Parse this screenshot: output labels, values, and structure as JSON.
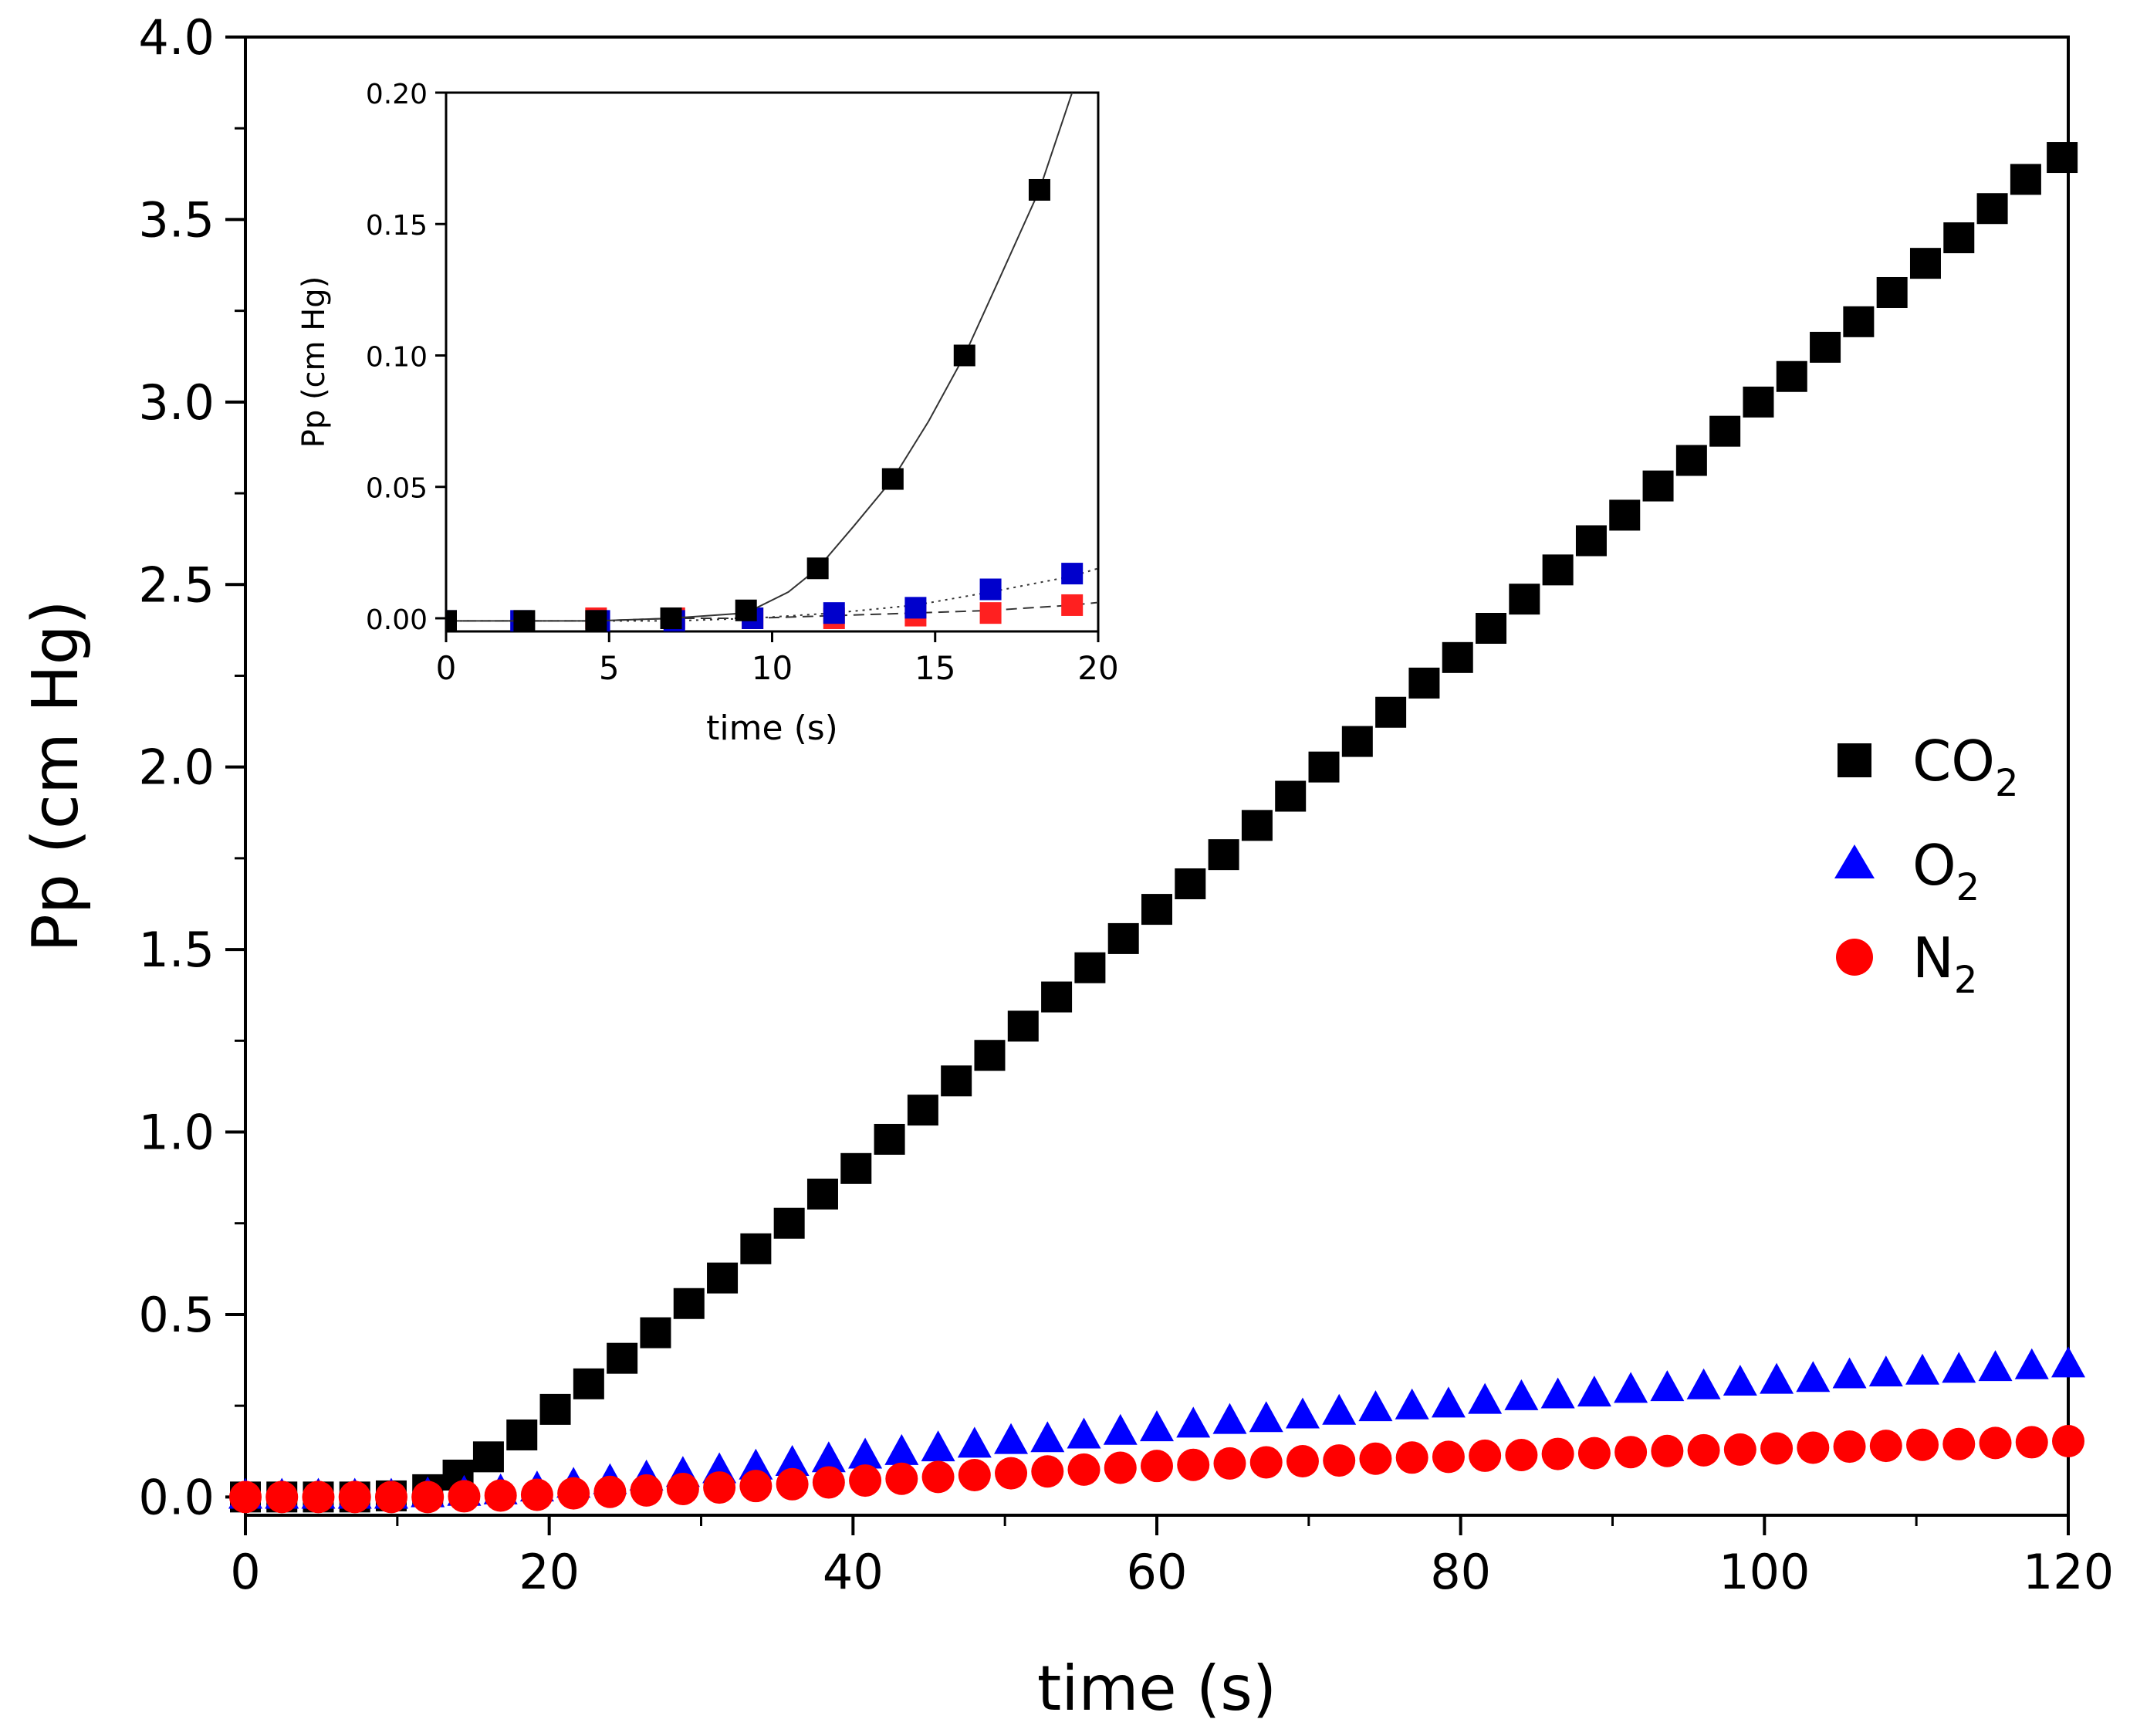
{
  "chart_data": [
    {
      "type": "scatter",
      "name": "main",
      "xlabel": "time (s)",
      "ylabel": "Pp (cm Hg)",
      "xlim": [
        0,
        120
      ],
      "ylim": [
        -0.05,
        4.0
      ],
      "xticks": [
        0,
        20,
        40,
        60,
        80,
        100,
        120
      ],
      "xtick_labels": [
        "0",
        "20",
        "40",
        "60",
        "80",
        "100",
        "120"
      ],
      "yticks": [
        0.0,
        0.5,
        1.0,
        1.5,
        2.0,
        2.5,
        3.0,
        3.5,
        4.0
      ],
      "ytick_labels": [
        "0.0",
        "0.5",
        "1.0",
        "1.5",
        "2.0",
        "2.5",
        "3.0",
        "3.5",
        "4.0"
      ],
      "series": [
        {
          "name": "CO",
          "sub": "2",
          "marker": "square",
          "color": "#000000",
          "x": [
            0,
            2.4,
            4.8,
            7.2,
            9.6,
            12.0,
            14.0,
            16.0,
            18.2,
            20.4,
            22.6,
            24.8,
            27.0,
            29.2,
            31.4,
            33.6,
            35.8,
            38.0,
            40.2,
            42.4,
            44.6,
            46.8,
            49.0,
            51.2,
            53.4,
            55.6,
            57.8,
            60.0,
            62.2,
            64.4,
            66.6,
            68.8,
            71.0,
            73.2,
            75.4,
            77.6,
            79.8,
            82.0,
            84.2,
            86.4,
            88.6,
            90.8,
            93.0,
            95.2,
            97.4,
            99.6,
            101.8,
            104.0,
            106.2,
            108.4,
            110.6,
            112.8,
            115.0,
            117.2,
            119.6
          ],
          "y": [
            0.0,
            0.0,
            0.0,
            0.0,
            0.003,
            0.02,
            0.06,
            0.11,
            0.17,
            0.24,
            0.31,
            0.38,
            0.45,
            0.53,
            0.6,
            0.68,
            0.75,
            0.83,
            0.9,
            0.98,
            1.06,
            1.14,
            1.21,
            1.29,
            1.37,
            1.45,
            1.53,
            1.61,
            1.68,
            1.76,
            1.84,
            1.92,
            2.0,
            2.07,
            2.15,
            2.23,
            2.3,
            2.38,
            2.46,
            2.54,
            2.62,
            2.69,
            2.77,
            2.84,
            2.92,
            3.0,
            3.07,
            3.15,
            3.22,
            3.3,
            3.38,
            3.45,
            3.53,
            3.61,
            3.67
          ]
        },
        {
          "name": "O",
          "sub": "2",
          "marker": "triangle",
          "color": "#0000ff",
          "x": [
            0,
            2.4,
            4.8,
            7.2,
            9.6,
            12.0,
            14.4,
            16.8,
            19.2,
            21.6,
            24.0,
            26.4,
            28.8,
            31.2,
            33.6,
            36.0,
            38.4,
            40.8,
            43.2,
            45.6,
            48.0,
            50.4,
            52.8,
            55.2,
            57.6,
            60.0,
            62.4,
            64.8,
            67.2,
            69.6,
            72.0,
            74.4,
            76.8,
            79.2,
            81.6,
            84.0,
            86.4,
            88.8,
            91.2,
            93.6,
            96.0,
            98.4,
            100.8,
            103.2,
            105.6,
            108.0,
            110.4,
            112.8,
            115.2,
            117.6,
            120.0
          ],
          "y": [
            0.0,
            0.0,
            0.0,
            0.0,
            0.0,
            0.004,
            0.008,
            0.012,
            0.02,
            0.03,
            0.04,
            0.05,
            0.06,
            0.07,
            0.08,
            0.09,
            0.1,
            0.11,
            0.12,
            0.13,
            0.14,
            0.15,
            0.155,
            0.165,
            0.175,
            0.185,
            0.195,
            0.205,
            0.21,
            0.22,
            0.23,
            0.24,
            0.245,
            0.25,
            0.26,
            0.27,
            0.275,
            0.28,
            0.29,
            0.295,
            0.3,
            0.31,
            0.315,
            0.32,
            0.33,
            0.335,
            0.34,
            0.345,
            0.35,
            0.355,
            0.36
          ]
        },
        {
          "name": "N",
          "sub": "2",
          "marker": "circle",
          "color": "#ff0000",
          "x": [
            0,
            2.4,
            4.8,
            7.2,
            9.6,
            12.0,
            14.4,
            16.8,
            19.2,
            21.6,
            24.0,
            26.4,
            28.8,
            31.2,
            33.6,
            36.0,
            38.4,
            40.8,
            43.2,
            45.6,
            48.0,
            50.4,
            52.8,
            55.2,
            57.6,
            60.0,
            62.4,
            64.8,
            67.2,
            69.6,
            72.0,
            74.4,
            76.8,
            79.2,
            81.6,
            84.0,
            86.4,
            88.8,
            91.2,
            93.6,
            96.0,
            98.4,
            100.8,
            103.2,
            105.6,
            108.0,
            110.4,
            112.8,
            115.2,
            117.6,
            120.0
          ],
          "y": [
            0.0,
            0.0,
            0.0,
            0.0,
            0.0,
            0.0,
            0.002,
            0.004,
            0.006,
            0.01,
            0.014,
            0.018,
            0.022,
            0.026,
            0.03,
            0.035,
            0.04,
            0.045,
            0.05,
            0.055,
            0.06,
            0.065,
            0.07,
            0.075,
            0.08,
            0.085,
            0.088,
            0.092,
            0.095,
            0.098,
            0.1,
            0.105,
            0.108,
            0.11,
            0.113,
            0.115,
            0.118,
            0.12,
            0.123,
            0.126,
            0.128,
            0.13,
            0.133,
            0.135,
            0.138,
            0.14,
            0.143,
            0.145,
            0.148,
            0.15,
            0.153
          ]
        }
      ],
      "legend_position": "right"
    },
    {
      "type": "line",
      "name": "inset",
      "xlabel": "time (s)",
      "ylabel": "Pp (cm Hg)",
      "xlim": [
        0,
        20
      ],
      "ylim": [
        -0.005,
        0.2
      ],
      "xticks": [
        0,
        5,
        10,
        15,
        20
      ],
      "xtick_labels": [
        "0",
        "5",
        "10",
        "15",
        "20"
      ],
      "yticks": [
        0.0,
        0.05,
        0.1,
        0.15,
        0.2
      ],
      "ytick_labels": [
        "0.00",
        "0.05",
        "0.10",
        "0.15",
        "0.20"
      ],
      "series": [
        {
          "name": "CO2",
          "marker": "square",
          "color": "#000000",
          "line_dash": "solid",
          "x": [
            0,
            2.4,
            4.6,
            6.9,
            9.2,
            11.4,
            13.7,
            15.9,
            18.2
          ],
          "y": [
            -0.001,
            -0.001,
            -0.001,
            0.0,
            0.003,
            0.019,
            0.053,
            0.1,
            0.163
          ],
          "curve_x": [
            0,
            2.4,
            4.6,
            6.9,
            9.2,
            10.5,
            11.4,
            12.5,
            13.7,
            14.8,
            15.9,
            17.0,
            18.2,
            19.2
          ],
          "curve_y": [
            -0.001,
            -0.001,
            -0.001,
            0.0,
            0.002,
            0.01,
            0.019,
            0.035,
            0.053,
            0.075,
            0.1,
            0.13,
            0.163,
            0.2
          ]
        },
        {
          "name": "O2",
          "marker": "square",
          "color": "#0000cc",
          "line_dash": "dotted",
          "x": [
            0,
            2.3,
            4.7,
            7.0,
            9.4,
            11.9,
            14.4,
            16.7,
            19.2
          ],
          "y": [
            -0.001,
            -0.001,
            -0.001,
            -0.001,
            0.0,
            0.002,
            0.004,
            0.011,
            0.017
          ],
          "curve_x": [
            0,
            2.3,
            4.7,
            7.0,
            9.4,
            11.9,
            14.4,
            16.7,
            19.2,
            20.0
          ],
          "curve_y": [
            -0.001,
            -0.001,
            -0.001,
            -0.001,
            0.0,
            0.002,
            0.005,
            0.01,
            0.016,
            0.019
          ]
        },
        {
          "name": "N2",
          "marker": "square",
          "color": "#ff2020",
          "line_dash": "dashed",
          "x": [
            4.6,
            7.0,
            9.4,
            11.9,
            14.4,
            16.7,
            19.2
          ],
          "y": [
            0.0,
            0.0,
            0.0,
            0.0,
            0.001,
            0.002,
            0.005
          ],
          "curve_x": [
            0,
            4.6,
            7.0,
            9.4,
            11.9,
            14.4,
            16.7,
            19.2,
            20.0
          ],
          "curve_y": [
            -0.001,
            -0.001,
            0.0,
            0.0,
            0.001,
            0.002,
            0.003,
            0.005,
            0.006
          ]
        }
      ]
    }
  ]
}
